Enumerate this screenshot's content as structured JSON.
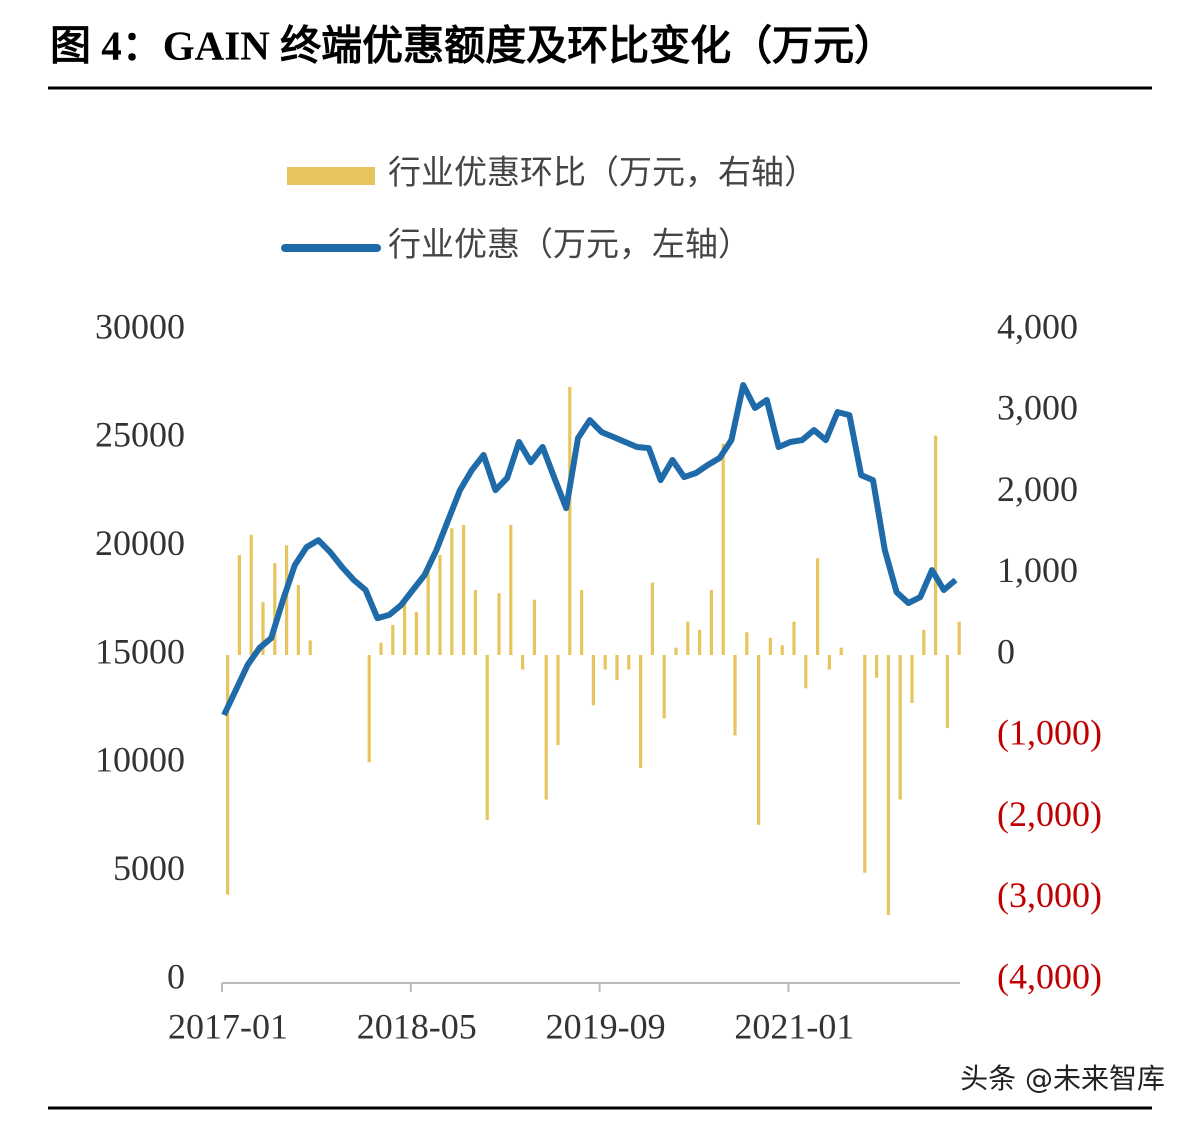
{
  "chart_data": {
    "type": "bar-line",
    "title": "图 4：GAIN 终端优惠额度及环比变化（万元）",
    "watermark": "头条 @未来智库",
    "categories": [
      "2017-01",
      null,
      null,
      null,
      null,
      null,
      null,
      null,
      null,
      null,
      null,
      null,
      null,
      null,
      null,
      null,
      "2018-05",
      null,
      null,
      null,
      null,
      null,
      null,
      null,
      null,
      null,
      null,
      null,
      null,
      null,
      null,
      null,
      "2019-09",
      null,
      null,
      null,
      null,
      null,
      null,
      null,
      null,
      null,
      null,
      null,
      null,
      null,
      null,
      null,
      "2021-01",
      null,
      null,
      null,
      null,
      null,
      null,
      null,
      null,
      null,
      null,
      null,
      null,
      null,
      null
    ],
    "series": [
      {
        "name": "行业优惠环比（万元，右轴）",
        "type": "bar",
        "axis": "y2",
        "color": "#e8c55c",
        "values": [
          -2950,
          1230,
          1480,
          650,
          1130,
          1350,
          860,
          180,
          0,
          0,
          0,
          0,
          -1320,
          150,
          370,
          680,
          530,
          1070,
          1230,
          1560,
          1600,
          800,
          -2030,
          760,
          1600,
          -180,
          680,
          -1780,
          -1110,
          3300,
          800,
          -620,
          -180,
          -310,
          -180,
          -1390,
          890,
          -780,
          90,
          410,
          310,
          800,
          2600,
          -990,
          280,
          -2090,
          210,
          120,
          410,
          -410,
          1190,
          -180,
          90,
          0,
          -2680,
          -280,
          -3200,
          -1780,
          -590,
          310,
          2700,
          -900,
          410
        ]
      },
      {
        "name": "行业优惠（万元，左轴）",
        "type": "line",
        "axis": "y",
        "color": "#1f6aa8",
        "values": [
          12230,
          13380,
          14540,
          15320,
          15780,
          17540,
          19150,
          19980,
          20300,
          19750,
          19060,
          18460,
          18000,
          16700,
          16850,
          17300,
          18000,
          18690,
          19840,
          21230,
          22610,
          23530,
          24230,
          22610,
          23170,
          24830,
          23900,
          24600,
          23170,
          21780,
          25010,
          25840,
          25290,
          25060,
          24830,
          24600,
          24550,
          23070,
          24000,
          23210,
          23400,
          23770,
          24090,
          24920,
          27460,
          26400,
          26770,
          24600,
          24830,
          24920,
          25380,
          24920,
          26210,
          26070,
          23300,
          23070,
          19840,
          17900,
          17400,
          17670,
          18920,
          18000,
          18460
        ]
      }
    ],
    "ylim": [
      0,
      30000
    ],
    "yticks": [
      0,
      5000,
      10000,
      15000,
      20000,
      25000,
      30000
    ],
    "y2lim": [
      -4000,
      4000
    ],
    "y2ticks": [
      {
        "value": -4000,
        "label": "(4,000)"
      },
      {
        "value": -3000,
        "label": "(3,000)"
      },
      {
        "value": -2000,
        "label": "(2,000)"
      },
      {
        "value": -1000,
        "label": "(1,000)"
      },
      {
        "value": 0,
        "label": "0"
      },
      {
        "value": 1000,
        "label": "1,000"
      },
      {
        "value": 2000,
        "label": "2,000"
      },
      {
        "value": 3000,
        "label": "3,000"
      },
      {
        "value": 4000,
        "label": "4,000"
      }
    ],
    "y2_negative_tick_color": "#c00000",
    "grid": false
  }
}
